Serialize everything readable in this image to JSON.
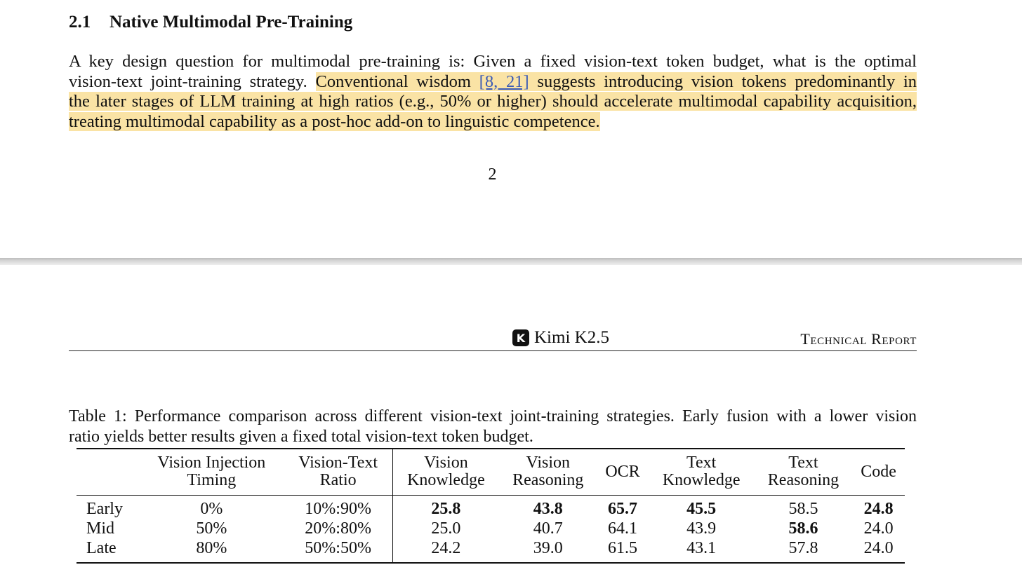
{
  "section": {
    "number": "2.1",
    "title": "Native Multimodal Pre-Training"
  },
  "paragraph": {
    "line1": "A key design question for multimodal pre-training is: Given a fixed vision-text token budget, what is the optimal",
    "line2_plain": "vision-text joint-training strategy.",
    "line2_hl_a": "Conventional wisdom",
    "line2_cite": "[8, 21]",
    "line2_hl_b": "suggests introducing vision tokens predominantly in",
    "line3": "the later stages of LLM training at high ratios (e.g., 50% or higher) should accelerate multimodal capability acquisition,",
    "line4": "treating multimodal capability as a post-hoc add-on to linguistic competence."
  },
  "page_number": "2",
  "running_head": {
    "logo_letter": "K",
    "title": "Kimi K2.5",
    "right": "Technical Report"
  },
  "caption": {
    "line1": "Table 1: Performance comparison across different vision-text joint-training strategies. Early fusion with a lower vision",
    "line2": "ratio yields better results given a fixed total vision-text token budget."
  },
  "table": {
    "headers": [
      {
        "l1": "Vision Injection",
        "l2": "Timing"
      },
      {
        "l1": "Vision-Text",
        "l2": "Ratio"
      },
      {
        "l1": "Vision",
        "l2": "Knowledge"
      },
      {
        "l1": "Vision",
        "l2": "Reasoning"
      },
      {
        "l1": "OCR",
        "l2": ""
      },
      {
        "l1": "Text",
        "l2": "Knowledge"
      },
      {
        "l1": "Text",
        "l2": "Reasoning"
      },
      {
        "l1": "Code",
        "l2": ""
      }
    ],
    "rows": [
      {
        "name": "Early",
        "timing": "0%",
        "ratio": "10%:90%",
        "vk": "25.8",
        "vr": "43.8",
        "ocr": "65.7",
        "tk": "45.5",
        "tr": "58.5",
        "code": "24.8"
      },
      {
        "name": "Mid",
        "timing": "50%",
        "ratio": "20%:80%",
        "vk": "25.0",
        "vr": "40.7",
        "ocr": "64.1",
        "tk": "43.9",
        "tr": "58.6",
        "code": "24.0"
      },
      {
        "name": "Late",
        "timing": "80%",
        "ratio": "50%:50%",
        "vk": "24.2",
        "vr": "39.0",
        "ocr": "61.5",
        "tk": "43.1",
        "tr": "57.8",
        "code": "24.0"
      }
    ]
  },
  "colors": {
    "highlight": "#fae3a5",
    "citation": "#3b5bb5"
  }
}
